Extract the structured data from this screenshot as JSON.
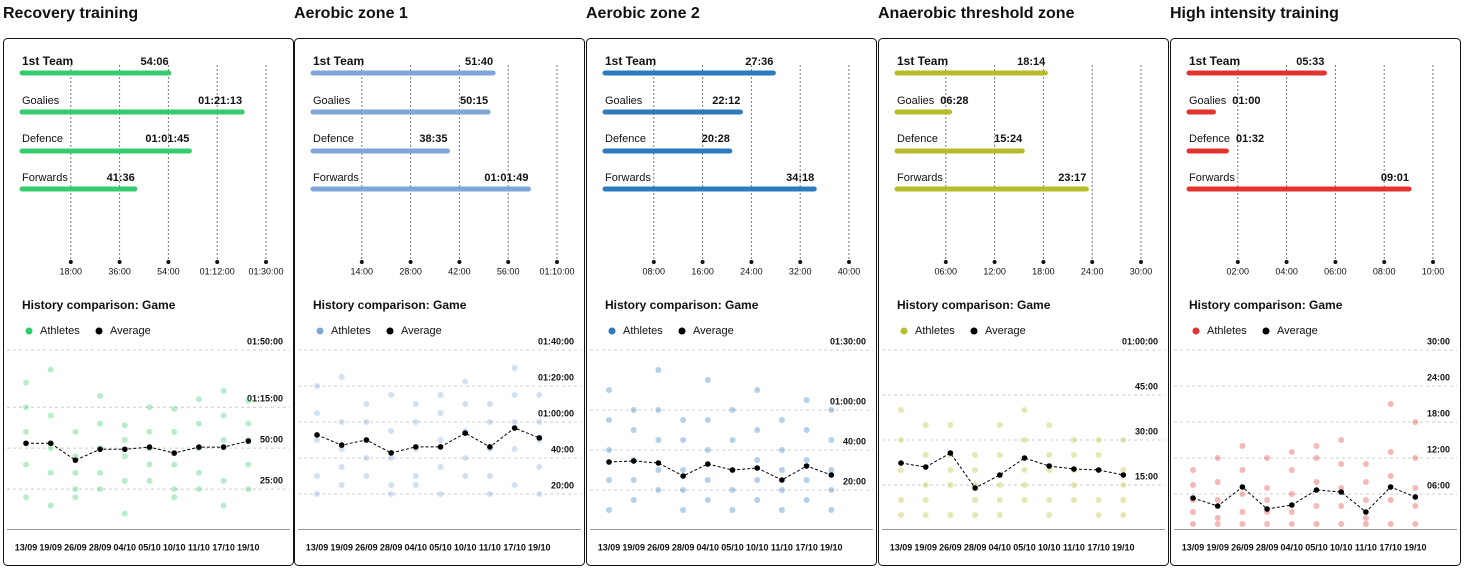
{
  "panels": [
    {
      "title": "Recovery training",
      "bars": {
        "categories": [
          "1st Team",
          "Goalies",
          "Defence",
          "Forwards"
        ],
        "values": [
          3246,
          4873,
          3705,
          2496
        ],
        "value_labels": [
          "54:06",
          "01:21:13",
          "01:01:45",
          "41:36"
        ],
        "color": "#35cc6e",
        "xlim": [
          0,
          5400
        ],
        "xticks": [
          {
            "value": 1080,
            "label": "18:00"
          },
          {
            "value": 2160,
            "label": "36:00"
          },
          {
            "value": 3240,
            "label": "54:00"
          },
          {
            "value": 4320,
            "label": "01:12:00"
          },
          {
            "value": 5400,
            "label": "01:30:00"
          }
        ]
      },
      "history": {
        "title": "History comparison: Game",
        "categories": [
          "13/09",
          "19/09",
          "26/09",
          "28/09",
          "04/10",
          "05/10",
          "10/10",
          "11/10",
          "17/10",
          "19/10"
        ],
        "series": [
          {
            "name": "Athletes",
            "color": "#35cc6e",
            "values": [
              [
                5400,
                4500,
                3600,
                2400,
                1200
              ],
              [
                5880,
                4200,
                3000,
                2100,
                900
              ],
              [
                3600,
                2700,
                2100,
                1500,
                1200
              ],
              [
                4920,
                3900,
                3000,
                2100,
                1500
              ],
              [
                3840,
                3300,
                2700,
                1800,
                600
              ],
              [
                4500,
                3600,
                3000,
                2400,
                1800
              ],
              [
                4440,
                3600,
                2400,
                1500,
                1200
              ],
              [
                4800,
                3900,
                3000,
                2100,
                1500
              ],
              [
                5100,
                4200,
                3300,
                1800,
                900
              ],
              [
                4740,
                3900,
                3300,
                2400,
                1500
              ]
            ]
          },
          {
            "name": "Average",
            "color": "#000000",
            "values": [
              3180,
              3180,
              2560,
              2960,
              2960,
              3040,
              2820,
              3040,
              3040,
              3260
            ]
          }
        ],
        "ylim": [
          0,
          6600
        ],
        "yticks": [
          {
            "value": 1500,
            "label": "25:00"
          },
          {
            "value": 3000,
            "label": "50:00"
          },
          {
            "value": 4500,
            "label": "01:15:00"
          },
          {
            "value": 6600,
            "label": "01:50:00"
          }
        ]
      }
    },
    {
      "title": "Aerobic zone 1",
      "bars": {
        "categories": [
          "1st Team",
          "Goalies",
          "Defence",
          "Forwards"
        ],
        "values": [
          3100,
          3015,
          2315,
          3709
        ],
        "value_labels": [
          "51:40",
          "50:15",
          "38:35",
          "01:01:49"
        ],
        "color": "#7fa6d9",
        "xlim": [
          0,
          4200
        ],
        "xticks": [
          {
            "value": 840,
            "label": "14:00"
          },
          {
            "value": 1680,
            "label": "28:00"
          },
          {
            "value": 2520,
            "label": "42:00"
          },
          {
            "value": 3360,
            "label": "56:00"
          },
          {
            "value": 4200,
            "label": "01:10:00"
          }
        ]
      },
      "history": {
        "title": "History comparison: Game",
        "categories": [
          "13/09",
          "19/09",
          "26/09",
          "28/09",
          "04/10",
          "05/10",
          "10/10",
          "11/10",
          "17/10",
          "19/10"
        ],
        "series": [
          {
            "name": "Athletes",
            "color": "#7fa6d9",
            "values": [
              [
                4800,
                3900,
                3000,
                1800,
                1200
              ],
              [
                5100,
                3600,
                2700,
                2100,
                1500
              ],
              [
                4200,
                3600,
                3000,
                2400,
                1800
              ],
              [
                4500,
                3300,
                2400,
                1500,
                1200
              ],
              [
                4200,
                3600,
                2700,
                1800,
                1500
              ],
              [
                4500,
                3900,
                3000,
                2100,
                1200
              ],
              [
                4950,
                4200,
                3300,
                2400,
                1800
              ],
              [
                4200,
                3600,
                2700,
                1800,
                1200
              ],
              [
                5400,
                4500,
                3600,
                2700,
                1500
              ],
              [
                4500,
                3600,
                3000,
                2100,
                1200
              ]
            ]
          },
          {
            "name": "Average",
            "color": "#000000",
            "values": [
              3170,
              2830,
              3000,
              2570,
              2770,
              2770,
              3230,
              2770,
              3400,
              3070
            ]
          }
        ],
        "ylim": [
          0,
          6000
        ],
        "yticks": [
          {
            "value": 1200,
            "label": "20:00"
          },
          {
            "value": 2400,
            "label": "40:00"
          },
          {
            "value": 3600,
            "label": "01:00:00"
          },
          {
            "value": 4800,
            "label": "01:20:00"
          },
          {
            "value": 6000,
            "label": "01:40:00"
          }
        ]
      }
    },
    {
      "title": "Aerobic zone 2",
      "bars": {
        "categories": [
          "1st Team",
          "Goalies",
          "Defence",
          "Forwards"
        ],
        "values": [
          1656,
          1332,
          1228,
          2058
        ],
        "value_labels": [
          "27:36",
          "22:12",
          "20:28",
          "34:18"
        ],
        "color": "#2b7bbf",
        "xlim": [
          0,
          2400
        ],
        "xticks": [
          {
            "value": 480,
            "label": "08:00"
          },
          {
            "value": 960,
            "label": "16:00"
          },
          {
            "value": 1440,
            "label": "24:00"
          },
          {
            "value": 1920,
            "label": "32:00"
          },
          {
            "value": 2400,
            "label": "40:00"
          }
        ]
      },
      "history": {
        "title": "History comparison: Game",
        "categories": [
          "13/09",
          "19/09",
          "26/09",
          "28/09",
          "04/10",
          "05/10",
          "10/10",
          "11/10",
          "17/10",
          "19/10"
        ],
        "series": [
          {
            "name": "Athletes",
            "color": "#2b7bbf",
            "values": [
              [
                4200,
                3300,
                2400,
                1500,
                600
              ],
              [
                3600,
                3000,
                2100,
                1500,
                900
              ],
              [
                4800,
                3600,
                2700,
                1800,
                1200
              ],
              [
                3300,
                2700,
                1800,
                1200,
                600
              ],
              [
                4500,
                3300,
                2400,
                1500,
                900
              ],
              [
                3600,
                2700,
                1800,
                1200,
                600
              ],
              [
                4200,
                3000,
                2100,
                1500,
                900
              ],
              [
                3300,
                2400,
                1800,
                1200,
                600
              ],
              [
                3900,
                3000,
                2100,
                1500,
                900
              ],
              [
                3600,
                2700,
                1800,
                1200,
                600
              ]
            ]
          },
          {
            "name": "Average",
            "color": "#000000",
            "values": [
              2040,
              2070,
              2010,
              1620,
              1980,
              1800,
              1860,
              1500,
              1920,
              1650
            ]
          }
        ],
        "ylim": [
          0,
          5400
        ],
        "yticks": [
          {
            "value": 1200,
            "label": "20:00"
          },
          {
            "value": 2400,
            "label": "40:00"
          },
          {
            "value": 3600,
            "label": "01:00:00"
          },
          {
            "value": 5400,
            "label": "01:30:00"
          }
        ]
      }
    },
    {
      "title": "Anaerobic threshold zone",
      "bars": {
        "categories": [
          "1st Team",
          "Goalies",
          "Defence",
          "Forwards"
        ],
        "values": [
          1094,
          388,
          924,
          1397
        ],
        "value_labels": [
          "18:14",
          "06:28",
          "15:24",
          "23:17"
        ],
        "color": "#b6bd28",
        "xlim": [
          0,
          1800
        ],
        "xticks": [
          {
            "value": 360,
            "label": "06:00"
          },
          {
            "value": 720,
            "label": "12:00"
          },
          {
            "value": 1080,
            "label": "18:00"
          },
          {
            "value": 1440,
            "label": "24:00"
          },
          {
            "value": 1800,
            "label": "30:00"
          }
        ]
      },
      "history": {
        "title": "History comparison: Game",
        "categories": [
          "13/09",
          "19/09",
          "26/09",
          "28/09",
          "04/10",
          "05/10",
          "10/10",
          "11/10",
          "17/10",
          "19/10"
        ],
        "series": [
          {
            "name": "Athletes",
            "color": "#b6bd28",
            "values": [
              [
                2400,
                1800,
                1200,
                600,
                300
              ],
              [
                2100,
                1500,
                900,
                600,
                300
              ],
              [
                2100,
                1500,
                1200,
                900,
                300
              ],
              [
                1500,
                1200,
                900,
                600,
                300
              ],
              [
                2100,
                1500,
                900,
                600,
                300
              ],
              [
                2400,
                1800,
                1200,
                900,
                600
              ],
              [
                2100,
                1500,
                1200,
                600,
                300
              ],
              [
                1800,
                1500,
                1200,
                900,
                600
              ],
              [
                1800,
                1500,
                1200,
                600,
                300
              ],
              [
                1800,
                1200,
                900,
                600,
                300
              ]
            ]
          },
          {
            "name": "Average",
            "color": "#000000",
            "values": [
              1340,
              1260,
              1540,
              840,
              1100,
              1440,
              1280,
              1220,
              1200,
              1100
            ]
          }
        ],
        "ylim": [
          0,
          3600
        ],
        "yticks": [
          {
            "value": 900,
            "label": "15:00"
          },
          {
            "value": 1800,
            "label": "30:00"
          },
          {
            "value": 2700,
            "label": "45:00"
          },
          {
            "value": 3600,
            "label": "01:00:00"
          }
        ]
      }
    },
    {
      "title": "High intensity training",
      "bars": {
        "categories": [
          "1st Team",
          "Goalies",
          "Defence",
          "Forwards"
        ],
        "values": [
          333,
          60,
          92,
          541
        ],
        "value_labels": [
          "05:33",
          "01:00",
          "01:32",
          "09:01"
        ],
        "color": "#e2332f",
        "xlim": [
          0,
          600
        ],
        "xticks": [
          {
            "value": 120,
            "label": "02:00"
          },
          {
            "value": 240,
            "label": "04:00"
          },
          {
            "value": 360,
            "label": "06:00"
          },
          {
            "value": 480,
            "label": "08:00"
          },
          {
            "value": 600,
            "label": "10:00"
          }
        ]
      },
      "history": {
        "title": "History comparison: Game",
        "categories": [
          "13/09",
          "19/09",
          "26/09",
          "28/09",
          "04/10",
          "05/10",
          "10/10",
          "11/10",
          "17/10",
          "19/10"
        ],
        "series": [
          {
            "name": "Athletes",
            "color": "#e2332f",
            "values": [
              [
                600,
                450,
                300,
                180,
                60
              ],
              [
                720,
                480,
                300,
                120,
                60
              ],
              [
                840,
                600,
                360,
                180,
                60
              ],
              [
                720,
                420,
                300,
                180,
                60
              ],
              [
                780,
                600,
                360,
                180,
                60
              ],
              [
                840,
                720,
                480,
                240,
                60
              ],
              [
                900,
                660,
                420,
                240,
                60
              ],
              [
                660,
                480,
                300,
                120,
                60
              ],
              [
                1260,
                780,
                540,
                300,
                60
              ],
              [
                1080,
                720,
                420,
                240,
                60
              ]
            ]
          },
          {
            "name": "Average",
            "color": "#000000",
            "values": [
              320,
              240,
              430,
              210,
              250,
              400,
              380,
              180,
              430,
              330
            ]
          }
        ],
        "ylim": [
          0,
          1800
        ],
        "yticks": [
          {
            "value": 360,
            "label": "06:00"
          },
          {
            "value": 720,
            "label": "12:00"
          },
          {
            "value": 1080,
            "label": "18:00"
          },
          {
            "value": 1440,
            "label": "24:00"
          },
          {
            "value": 1800,
            "label": "30:00"
          }
        ]
      }
    }
  ]
}
